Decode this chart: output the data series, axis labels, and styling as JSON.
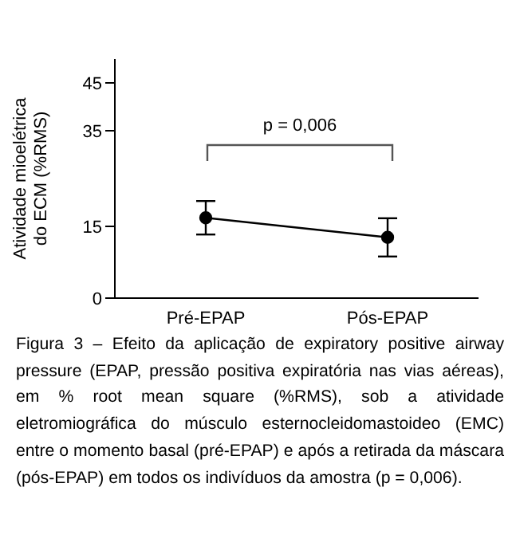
{
  "chart_data": {
    "type": "line",
    "ylabel": "Atividade mioelétrica do ECM (%RMS)",
    "categories": [
      "Pré-EPAP",
      "Pós-EPAP"
    ],
    "series": [
      {
        "color": "#000000",
        "values": [
          16.8,
          12.7
        ],
        "errors": [
          [
            13.3,
            20.3
          ],
          [
            8.7,
            16.7
          ]
        ]
      }
    ],
    "ylim": [
      0,
      50
    ],
    "yticks": [
      0,
      15,
      35,
      45
    ],
    "marker": "circle",
    "line_style": "solid",
    "grid": false,
    "legend": false,
    "annotations": [
      "p = 0,006",
      "Figura 3 – Efeito da aplicação de expiratory positive airway pressure (EPAP, pressão positiva expiratória nas vias aéreas), em % root mean square (%RMS), sob a atividade eletromiográfica do músculo esternocleidomastoideo (EMC) entre o momento basal (pré-EPAP) e após a retirada da máscara (pós-EPAP) em todos os indivíduos da amostra (p = 0,006)."
    ]
  }
}
